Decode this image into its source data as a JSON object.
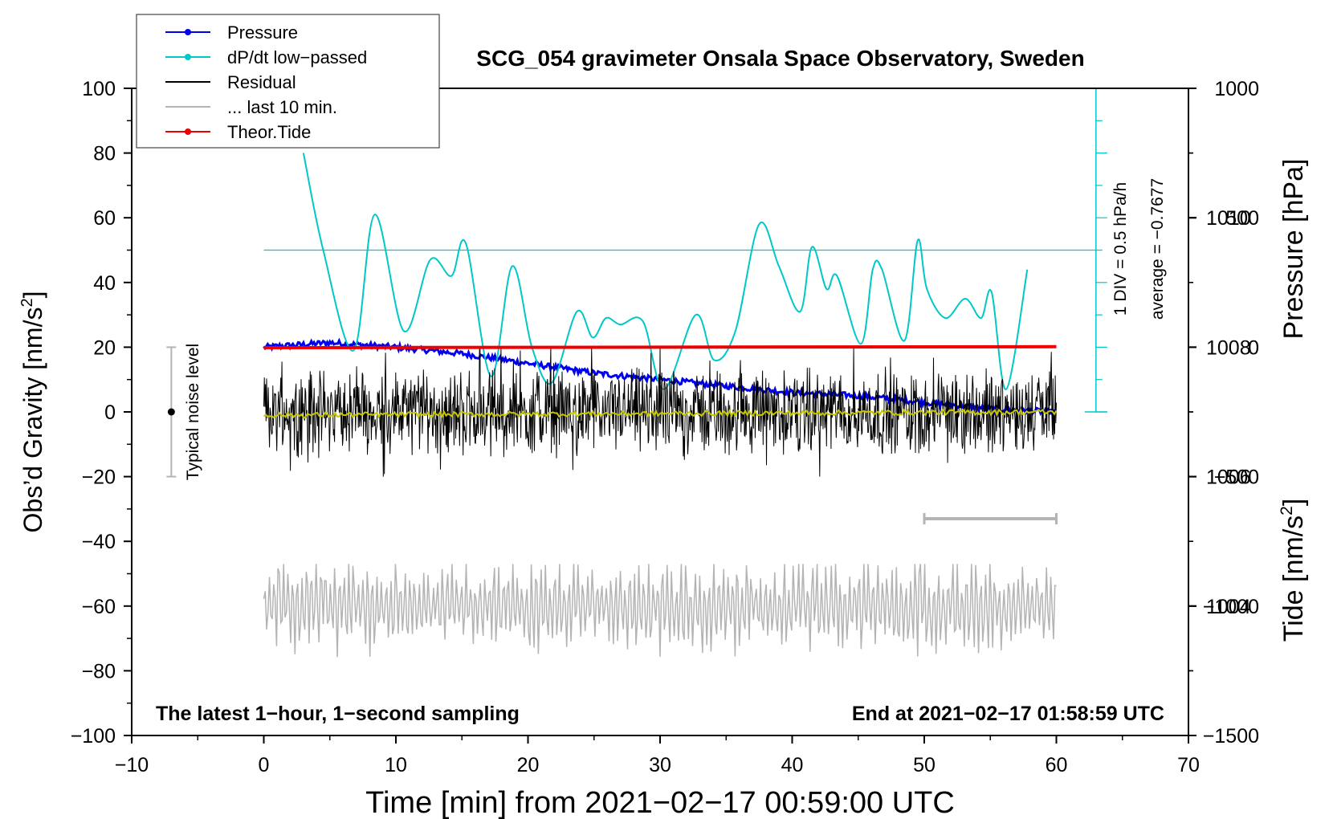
{
  "chart_data": {
    "type": "line",
    "title": "SCG_054 gravimeter Onsala Space Observatory, Sweden",
    "xlabel": "Time [min] from 2021−02−17 00:59:00 UTC",
    "ylabel_left": "Obs’d Gravity [nm/s2]",
    "ylabel_left_main": "Obs’d Gravity [nm/s",
    "ylabel_left_sup": "2",
    "ylabel_left_end": "]",
    "ylabel_pressure": "Pressure [hPa]",
    "ylabel_tide_main": "Tide [nm/s",
    "ylabel_tide_sup": "2",
    "ylabel_tide_end": "]",
    "xlim": [
      -10,
      70
    ],
    "ylim_left": [
      -100,
      100
    ],
    "ylim_pressure": [
      1002,
      1012
    ],
    "ylim_tide": [
      -1500,
      1000
    ],
    "x_ticks": [
      "−10",
      "0",
      "10",
      "20",
      "30",
      "40",
      "50",
      "60",
      "70"
    ],
    "y_ticks_left": [
      "−100",
      "−80",
      "−60",
      "−40",
      "−20",
      "0",
      "20",
      "40",
      "60",
      "80",
      "100"
    ],
    "y_ticks_pressure": [
      "1004",
      "1006",
      "1008",
      "1010"
    ],
    "y_ticks_tide": [
      "−1500",
      "−1000",
      "−500",
      "0",
      "500",
      "1000"
    ],
    "legend": {
      "placement": "top-left",
      "entries": [
        {
          "label": "Pressure",
          "color": "#0000ee",
          "marker": true
        },
        {
          "label": "dP/dt low−passed",
          "color": "#00c8c8",
          "marker": true
        },
        {
          "label": "Residual",
          "color": "#000000",
          "marker": false
        },
        {
          "label": "... last 10 min.",
          "color": "#b4b4b4",
          "marker": false
        },
        {
          "label": "Theor.Tide",
          "color": "#ee0000",
          "marker": true
        }
      ]
    },
    "annotations": {
      "bottom_left": "The latest 1−hour, 1−second sampling",
      "bottom_right": "End at 2021−02−17 01:58:59 UTC",
      "noise_label": "Typical noise level",
      "div_label": "1 DIV = 0.5 hPa/h",
      "average_label": "average = −0.7677"
    },
    "noise_bar": {
      "x": -7,
      "y": 0,
      "range": [
        -20,
        20
      ]
    },
    "last10_bar": {
      "x_start": 50,
      "x_end": 60
    },
    "series": [
      {
        "name": "Pressure",
        "axis": "pressure",
        "unit": "hPa",
        "color": "#0000ee",
        "x": [
          0,
          5,
          10,
          15,
          20,
          25,
          30,
          35,
          40,
          45,
          50,
          55,
          60
        ],
        "values": [
          1008.0,
          1008.07,
          1008.0,
          1007.9,
          1007.75,
          1007.6,
          1007.5,
          1007.4,
          1007.3,
          1007.25,
          1007.15,
          1007.05,
          1007.0
        ]
      },
      {
        "name": "dP/dt low-passed",
        "axis": "left",
        "unit": "nm/s2 scale",
        "color": "#00c8c8",
        "baseline": 50,
        "x": [
          3,
          4.5,
          6.8,
          8.4,
          10.6,
          12.6,
          14.2,
          15.3,
          17.2,
          18.8,
          20.3,
          21.8,
          23.7,
          24.9,
          25.9,
          27,
          28.7,
          30.3,
          32.7,
          34.1,
          35.7,
          37.5,
          39,
          40.6,
          41.5,
          42.6,
          43.4,
          45.2,
          46.1,
          46.8,
          48.5,
          49.5,
          50.2,
          51.6,
          53.1,
          54.3,
          55.1,
          56.2,
          57.8
        ],
        "values": [
          80,
          50,
          19,
          61,
          25,
          47,
          42,
          52,
          11,
          45,
          20,
          9,
          31,
          23,
          29,
          27,
          28,
          7,
          30,
          16,
          25,
          58,
          45,
          31,
          51,
          38,
          42,
          21,
          44,
          44,
          22,
          53,
          38,
          29,
          35,
          29,
          37,
          7,
          44
        ]
      },
      {
        "name": "Residual",
        "axis": "left",
        "unit": "nm/s2",
        "color": "#000000",
        "x": [
          0,
          60
        ],
        "values": [
          0,
          0
        ],
        "noise_amplitude": [
          -20,
          20
        ],
        "x_range": [
          0,
          60
        ]
      },
      {
        "name": "Residual smoothed",
        "axis": "left",
        "unit": "nm/s2",
        "color": "#c8c800",
        "x": [
          0,
          60
        ],
        "values": [
          -1,
          0
        ]
      },
      {
        "name": "... last 10 min.",
        "axis": "left",
        "unit": "nm/s2",
        "color": "#b4b4b4",
        "x": [
          0,
          60
        ],
        "values": [
          -60,
          -60
        ],
        "range": [
          -77,
          -47
        ],
        "x_range": [
          0,
          60
        ]
      },
      {
        "name": "Theor.Tide",
        "axis": "tide",
        "unit": "nm/s2",
        "color": "#ee0000",
        "x": [
          0,
          60
        ],
        "values": [
          -2,
          2
        ]
      }
    ]
  }
}
